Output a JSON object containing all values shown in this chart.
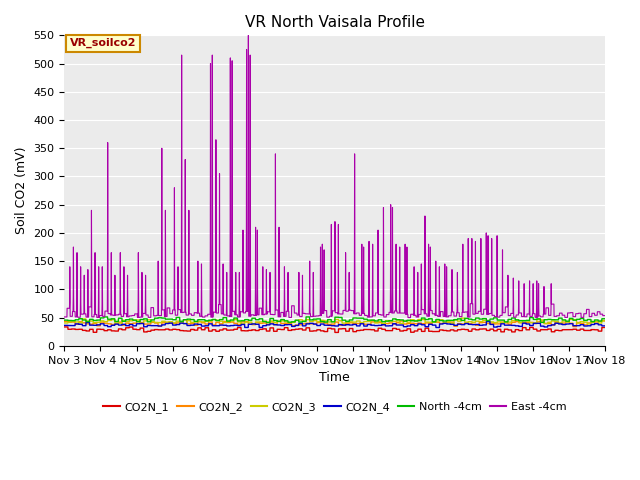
{
  "title": "VR North Vaisala Profile",
  "ylabel": "Soil CO2 (mV)",
  "xlabel": "Time",
  "ylim": [
    0,
    550
  ],
  "xlim": [
    3,
    18
  ],
  "xtick_labels": [
    "Nov 3",
    "Nov 4",
    "Nov 5",
    "Nov 6",
    "Nov 7",
    "Nov 8",
    "Nov 9",
    "Nov 10",
    "Nov 11",
    "Nov 12",
    "Nov 13",
    "Nov 14",
    "Nov 15",
    "Nov 16",
    "Nov 17",
    "Nov 18"
  ],
  "xtick_positions": [
    3,
    4,
    5,
    6,
    7,
    8,
    9,
    10,
    11,
    12,
    13,
    14,
    15,
    16,
    17,
    18
  ],
  "legend_label": "VR_soilco2",
  "series": {
    "CO2N_1": {
      "color": "#dd0000",
      "lw": 1.0,
      "base": 28,
      "noise": 2
    },
    "CO2N_2": {
      "color": "#ff8800",
      "lw": 1.0,
      "base": 40,
      "noise": 2
    },
    "CO2N_3": {
      "color": "#cccc00",
      "lw": 1.0,
      "base": 43,
      "noise": 2
    },
    "CO2N_4": {
      "color": "#0000cc",
      "lw": 1.0,
      "base": 37,
      "noise": 2
    },
    "North -4cm": {
      "color": "#00bb00",
      "lw": 1.0,
      "base": 46,
      "noise": 2
    },
    "East -4cm": {
      "color": "#aa00aa",
      "lw": 0.8
    }
  },
  "plot_bg": "#ebebeb",
  "spike_data": {
    "base": 50,
    "base_noise": 8,
    "spikes": [
      [
        3.15,
        90
      ],
      [
        3.25,
        125
      ],
      [
        3.35,
        115
      ],
      [
        3.45,
        90
      ],
      [
        3.55,
        75
      ],
      [
        3.65,
        85
      ],
      [
        3.75,
        190
      ],
      [
        3.85,
        115
      ],
      [
        3.95,
        90
      ],
      [
        4.05,
        90
      ],
      [
        4.2,
        310
      ],
      [
        4.3,
        115
      ],
      [
        4.4,
        75
      ],
      [
        4.55,
        115
      ],
      [
        4.65,
        90
      ],
      [
        4.75,
        75
      ],
      [
        5.05,
        115
      ],
      [
        5.15,
        80
      ],
      [
        5.25,
        75
      ],
      [
        5.6,
        100
      ],
      [
        5.7,
        300
      ],
      [
        5.8,
        190
      ],
      [
        6.05,
        230
      ],
      [
        6.15,
        90
      ],
      [
        6.25,
        465
      ],
      [
        6.35,
        280
      ],
      [
        6.45,
        190
      ],
      [
        6.7,
        100
      ],
      [
        6.8,
        95
      ],
      [
        7.05,
        450
      ],
      [
        7.1,
        465
      ],
      [
        7.2,
        315
      ],
      [
        7.3,
        255
      ],
      [
        7.4,
        95
      ],
      [
        7.5,
        80
      ],
      [
        7.6,
        460
      ],
      [
        7.65,
        455
      ],
      [
        7.75,
        80
      ],
      [
        7.85,
        80
      ],
      [
        7.95,
        155
      ],
      [
        8.05,
        475
      ],
      [
        8.1,
        510
      ],
      [
        8.15,
        465
      ],
      [
        8.3,
        160
      ],
      [
        8.35,
        155
      ],
      [
        8.5,
        90
      ],
      [
        8.6,
        85
      ],
      [
        8.7,
        80
      ],
      [
        8.85,
        290
      ],
      [
        8.95,
        160
      ],
      [
        9.1,
        90
      ],
      [
        9.2,
        80
      ],
      [
        9.5,
        80
      ],
      [
        9.6,
        75
      ],
      [
        9.8,
        100
      ],
      [
        9.9,
        80
      ],
      [
        10.1,
        125
      ],
      [
        10.15,
        130
      ],
      [
        10.2,
        120
      ],
      [
        10.4,
        165
      ],
      [
        10.5,
        170
      ],
      [
        10.6,
        165
      ],
      [
        10.8,
        115
      ],
      [
        10.9,
        80
      ],
      [
        11.05,
        290
      ],
      [
        11.25,
        130
      ],
      [
        11.3,
        125
      ],
      [
        11.45,
        135
      ],
      [
        11.55,
        130
      ],
      [
        11.7,
        155
      ],
      [
        11.85,
        195
      ],
      [
        12.05,
        200
      ],
      [
        12.1,
        195
      ],
      [
        12.2,
        130
      ],
      [
        12.3,
        125
      ],
      [
        12.45,
        130
      ],
      [
        12.5,
        125
      ],
      [
        12.7,
        90
      ],
      [
        12.8,
        80
      ],
      [
        12.9,
        95
      ],
      [
        13.0,
        180
      ],
      [
        13.1,
        130
      ],
      [
        13.15,
        125
      ],
      [
        13.3,
        100
      ],
      [
        13.4,
        90
      ],
      [
        13.55,
        95
      ],
      [
        13.6,
        90
      ],
      [
        13.75,
        85
      ],
      [
        13.9,
        80
      ],
      [
        14.05,
        130
      ],
      [
        14.2,
        140
      ],
      [
        14.3,
        140
      ],
      [
        14.4,
        135
      ],
      [
        14.55,
        140
      ],
      [
        14.7,
        150
      ],
      [
        14.75,
        145
      ],
      [
        14.85,
        140
      ],
      [
        15.0,
        145
      ],
      [
        15.15,
        120
      ],
      [
        15.3,
        75
      ],
      [
        15.45,
        70
      ],
      [
        15.6,
        65
      ],
      [
        15.75,
        60
      ],
      [
        15.9,
        65
      ],
      [
        16.0,
        60
      ],
      [
        16.1,
        65
      ],
      [
        16.15,
        60
      ],
      [
        16.3,
        55
      ],
      [
        16.5,
        60
      ]
    ]
  }
}
